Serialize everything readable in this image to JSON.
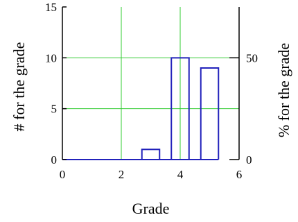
{
  "chart_data": {
    "type": "bar",
    "xlabel": "Grade",
    "ylabel": "# for the grade",
    "y2label": "% for the grade",
    "xlim": [
      0,
      6
    ],
    "ylim": [
      0,
      15
    ],
    "y2lim": [
      0,
      75
    ],
    "x_ticks": [
      "0",
      "2",
      "4",
      "6"
    ],
    "y_ticks": [
      "0",
      "5",
      "10",
      "15"
    ],
    "y2_ticks": [
      "0",
      "50"
    ],
    "grid": true,
    "grid_color": "#33cc33",
    "bar_color": "#2222bb",
    "bar_width": 0.6,
    "bars": [
      {
        "x": 0.3,
        "value": 0
      },
      {
        "x": 1.0,
        "value": 0
      },
      {
        "x": 2.0,
        "value": 0
      },
      {
        "x": 3.0,
        "value": 1
      },
      {
        "x": 4.0,
        "value": 10
      },
      {
        "x": 5.0,
        "value": 9
      }
    ]
  }
}
